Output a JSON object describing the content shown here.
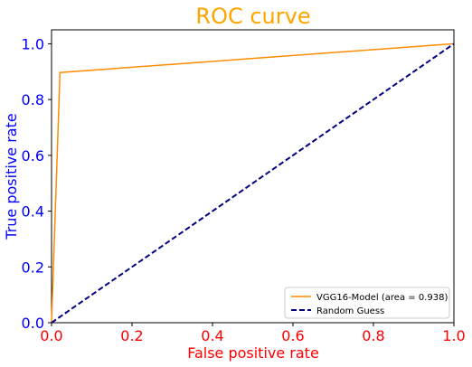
{
  "colors": {
    "title": "#ffa500",
    "x_axis": "#ff0000",
    "y_axis": "#0000ff",
    "roc_line": "#ff8c00",
    "random_line": "#000080"
  },
  "chart_data": {
    "type": "line",
    "title": "ROC curve",
    "xlabel": "False positive rate",
    "ylabel": "True positive rate",
    "xlim": [
      0.0,
      1.0
    ],
    "ylim": [
      0.0,
      1.05
    ],
    "x_ticks": [
      "0.0",
      "0.2",
      "0.4",
      "0.6",
      "0.8",
      "1.0"
    ],
    "y_ticks": [
      "0.0",
      "0.2",
      "0.4",
      "0.6",
      "0.8",
      "1.0"
    ],
    "grid": false,
    "legend_position": "lower-right",
    "series": [
      {
        "name": "VGG16-Model (area = 0.938)",
        "style": "solid",
        "x": [
          0.0,
          0.021,
          1.0
        ],
        "y": [
          0.0,
          0.897,
          1.0
        ]
      },
      {
        "name": "Random Guess",
        "style": "dashed",
        "x": [
          0.0,
          1.0
        ],
        "y": [
          0.0,
          1.0
        ]
      }
    ]
  }
}
